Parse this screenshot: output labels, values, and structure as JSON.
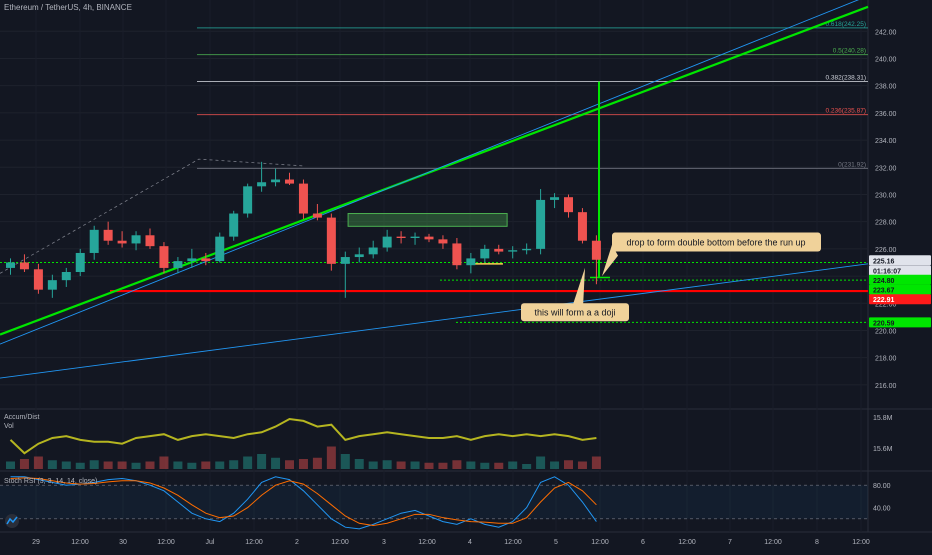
{
  "header": {
    "symbol_line": "Ethereum / TetherUS, 4h, BINANCE"
  },
  "colors": {
    "background": "#131722",
    "up": "#26a69a",
    "down": "#ef5350",
    "trendline": "#00e600",
    "support": "#ff0000",
    "ad_line": "#b5b520"
  },
  "chart_data": [
    {
      "type": "candlestick",
      "symbol": "ETH/USDT",
      "timeframe": "4h",
      "ylim": [
        214.3,
        244.3
      ],
      "y_ticks": [
        216,
        218,
        220,
        222,
        224,
        226,
        228,
        230,
        232,
        234,
        236,
        238,
        240,
        242
      ],
      "x_ticks": [
        "29",
        "12:00",
        "30",
        "12:00",
        "Jul",
        "12:00",
        "2",
        "12:00",
        "3",
        "12:00",
        "4",
        "12:00",
        "5",
        "12:00",
        "6",
        "12:00",
        "7",
        "12:00",
        "8",
        "12:00"
      ],
      "candles": [
        {
          "o": 224.6,
          "h": 225.3,
          "l": 224.1,
          "c": 225.0
        },
        {
          "o": 225.0,
          "h": 225.6,
          "l": 224.3,
          "c": 224.5
        },
        {
          "o": 224.5,
          "h": 224.9,
          "l": 222.7,
          "c": 223.0
        },
        {
          "o": 223.0,
          "h": 224.1,
          "l": 222.4,
          "c": 223.7
        },
        {
          "o": 223.7,
          "h": 224.6,
          "l": 223.2,
          "c": 224.3
        },
        {
          "o": 224.3,
          "h": 226.0,
          "l": 224.0,
          "c": 225.7
        },
        {
          "o": 225.7,
          "h": 227.7,
          "l": 225.2,
          "c": 227.4
        },
        {
          "o": 227.4,
          "h": 228.0,
          "l": 226.3,
          "c": 226.6
        },
        {
          "o": 226.6,
          "h": 227.3,
          "l": 226.1,
          "c": 226.4
        },
        {
          "o": 226.4,
          "h": 227.3,
          "l": 225.9,
          "c": 227.0
        },
        {
          "o": 227.0,
          "h": 227.5,
          "l": 226.0,
          "c": 226.2
        },
        {
          "o": 226.2,
          "h": 226.5,
          "l": 224.2,
          "c": 224.6
        },
        {
          "o": 224.6,
          "h": 225.4,
          "l": 224.2,
          "c": 225.1
        },
        {
          "o": 225.1,
          "h": 226.0,
          "l": 224.6,
          "c": 225.3
        },
        {
          "o": 225.3,
          "h": 225.7,
          "l": 224.8,
          "c": 225.1
        },
        {
          "o": 225.1,
          "h": 227.2,
          "l": 225.0,
          "c": 226.9
        },
        {
          "o": 226.9,
          "h": 228.8,
          "l": 226.6,
          "c": 228.6
        },
        {
          "o": 228.6,
          "h": 230.8,
          "l": 228.3,
          "c": 230.6
        },
        {
          "o": 230.6,
          "h": 232.4,
          "l": 230.2,
          "c": 230.9
        },
        {
          "o": 230.9,
          "h": 231.9,
          "l": 230.6,
          "c": 231.1
        },
        {
          "o": 231.1,
          "h": 231.6,
          "l": 230.7,
          "c": 230.8
        },
        {
          "o": 230.8,
          "h": 231.1,
          "l": 228.2,
          "c": 228.6
        },
        {
          "o": 228.6,
          "h": 229.3,
          "l": 228.1,
          "c": 228.3
        },
        {
          "o": 228.3,
          "h": 228.6,
          "l": 224.4,
          "c": 224.9
        },
        {
          "o": 224.9,
          "h": 225.8,
          "l": 222.4,
          "c": 225.4
        },
        {
          "o": 225.4,
          "h": 226.1,
          "l": 225.0,
          "c": 225.6
        },
        {
          "o": 225.6,
          "h": 226.6,
          "l": 225.3,
          "c": 226.1
        },
        {
          "o": 226.1,
          "h": 227.4,
          "l": 225.8,
          "c": 226.9
        },
        {
          "o": 226.9,
          "h": 227.3,
          "l": 226.4,
          "c": 226.8
        },
        {
          "o": 226.8,
          "h": 227.2,
          "l": 226.3,
          "c": 226.9
        },
        {
          "o": 226.9,
          "h": 227.1,
          "l": 226.5,
          "c": 226.7
        },
        {
          "o": 226.7,
          "h": 227.0,
          "l": 226.0,
          "c": 226.4
        },
        {
          "o": 226.4,
          "h": 226.8,
          "l": 224.5,
          "c": 224.8
        },
        {
          "o": 224.8,
          "h": 225.7,
          "l": 224.2,
          "c": 225.3
        },
        {
          "o": 225.3,
          "h": 226.3,
          "l": 225.0,
          "c": 226.0
        },
        {
          "o": 226.0,
          "h": 226.3,
          "l": 225.6,
          "c": 225.8
        },
        {
          "o": 225.8,
          "h": 226.2,
          "l": 225.3,
          "c": 225.9
        },
        {
          "o": 225.9,
          "h": 226.4,
          "l": 225.6,
          "c": 226.0
        },
        {
          "o": 226.0,
          "h": 230.4,
          "l": 225.6,
          "c": 229.6
        },
        {
          "o": 229.6,
          "h": 230.1,
          "l": 229.0,
          "c": 229.8
        },
        {
          "o": 229.8,
          "h": 230.0,
          "l": 228.3,
          "c": 228.7
        },
        {
          "o": 228.7,
          "h": 229.0,
          "l": 226.4,
          "c": 226.6
        },
        {
          "o": 226.6,
          "h": 227.0,
          "l": 223.4,
          "c": 225.2
        }
      ],
      "fib_levels": [
        {
          "label": "0.618(242.25)",
          "price": 242.25,
          "color": "#26a69a"
        },
        {
          "label": "0.5(240.28)",
          "price": 240.28,
          "color": "#4caf50"
        },
        {
          "label": "0.382(238.31)",
          "price": 238.31,
          "color": "#d1d4dc"
        },
        {
          "label": "0.236(235.87)",
          "price": 235.87,
          "color": "#ef5350"
        },
        {
          "label": "0(231.92)",
          "price": 231.92,
          "color": "#787b86"
        }
      ],
      "price_labels": [
        {
          "text": "225.16",
          "price": 225.16,
          "bg": "#e0e3eb",
          "fg": "#131722"
        },
        {
          "text": "01:16:07",
          "price": 224.42,
          "bg": "#e0e3eb",
          "fg": "#131722"
        },
        {
          "text": "224.80",
          "price": 223.73,
          "bg": "#00e600",
          "fg": "#131722"
        },
        {
          "text": "223.67",
          "price": 223.0,
          "bg": "#00e600",
          "fg": "#131722"
        },
        {
          "text": "222.91",
          "price": 222.3,
          "bg": "#ff1a1a",
          "fg": "#ffffff"
        },
        {
          "text": "220.59",
          "price": 220.6,
          "bg": "#00e600",
          "fg": "#131722"
        }
      ],
      "annotations": [
        {
          "text": "drop to form double bottom  before the run up"
        },
        {
          "text": "this will form a a doji"
        }
      ]
    },
    {
      "type": "line",
      "title": "Accum/Dist",
      "subtitle": "Vol",
      "y_ticks": [
        "15.8M",
        "15.6M"
      ],
      "ad_values": [
        0.45,
        0.1,
        0.35,
        0.5,
        0.55,
        0.45,
        0.4,
        0.4,
        0.35,
        0.5,
        0.55,
        0.6,
        0.45,
        0.55,
        0.6,
        0.55,
        0.5,
        0.6,
        0.65,
        0.8,
        1.0,
        0.95,
        0.8,
        0.85,
        0.45,
        0.55,
        0.6,
        0.65,
        0.6,
        0.55,
        0.5,
        0.5,
        0.55,
        0.45,
        0.55,
        0.6,
        0.55,
        0.6,
        0.55,
        0.6,
        0.55,
        0.45,
        0.5
      ],
      "volumes": [
        0.3,
        0.4,
        0.5,
        0.35,
        0.3,
        0.25,
        0.35,
        0.3,
        0.3,
        0.25,
        0.3,
        0.5,
        0.3,
        0.25,
        0.3,
        0.3,
        0.35,
        0.5,
        0.6,
        0.45,
        0.35,
        0.4,
        0.45,
        0.9,
        0.6,
        0.4,
        0.3,
        0.35,
        0.3,
        0.3,
        0.25,
        0.25,
        0.35,
        0.3,
        0.25,
        0.25,
        0.3,
        0.2,
        0.5,
        0.3,
        0.35,
        0.3,
        0.5
      ]
    },
    {
      "type": "line",
      "title": "Stoch RSI (3, 3, 14, 14, close)",
      "y_ticks": [
        "80.00",
        "40.00"
      ],
      "k_values": [
        95,
        95,
        90,
        85,
        80,
        82,
        85,
        90,
        92,
        88,
        80,
        70,
        50,
        30,
        20,
        15,
        30,
        55,
        85,
        95,
        90,
        70,
        45,
        20,
        5,
        2,
        10,
        20,
        30,
        35,
        25,
        15,
        10,
        20,
        10,
        5,
        15,
        40,
        85,
        95,
        80,
        50,
        15
      ],
      "d_values": [
        92,
        93,
        92,
        88,
        84,
        82,
        83,
        86,
        88,
        88,
        84,
        75,
        62,
        45,
        30,
        22,
        25,
        40,
        62,
        80,
        88,
        82,
        65,
        45,
        25,
        12,
        8,
        12,
        20,
        28,
        28,
        22,
        18,
        15,
        14,
        12,
        12,
        22,
        50,
        75,
        85,
        70,
        45
      ]
    }
  ]
}
